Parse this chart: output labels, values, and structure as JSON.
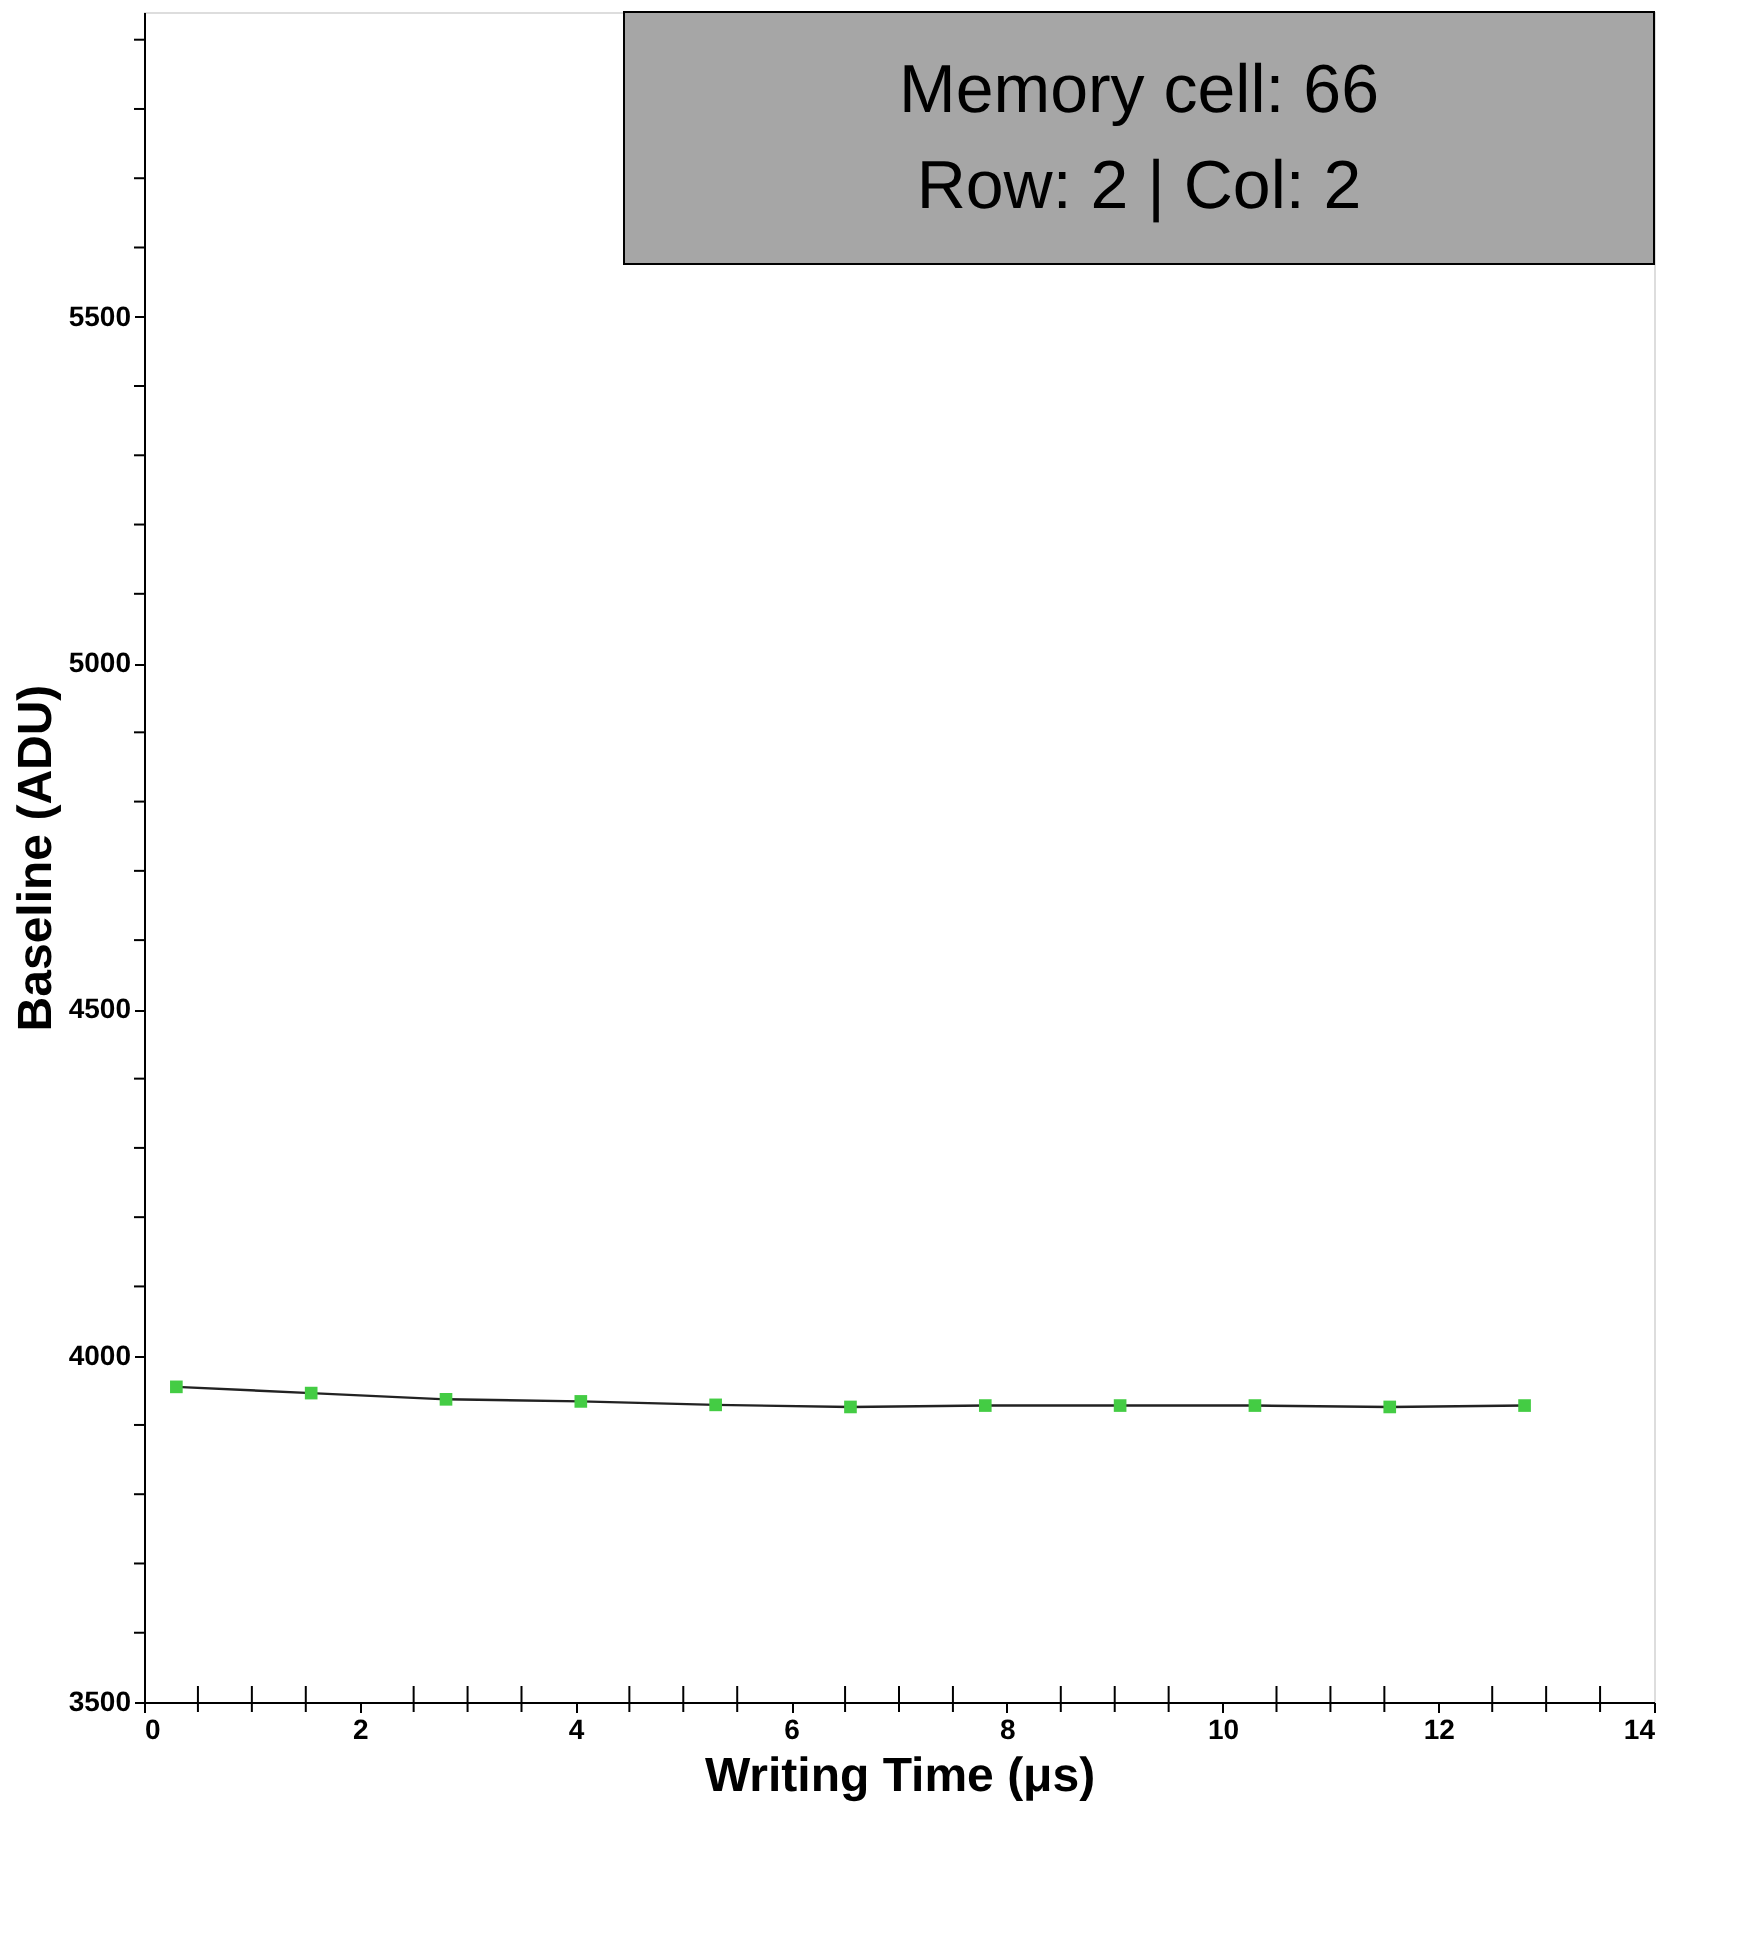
{
  "chart_data": {
    "type": "line",
    "xlabel": "Writing Time (μs)",
    "ylabel": "Baseline (ADU)",
    "x": [
      0.3,
      1.55,
      2.8,
      4.05,
      5.3,
      6.55,
      7.8,
      9.05,
      10.3,
      11.55,
      12.8
    ],
    "series": [
      {
        "color": "#44cc44",
        "values": [
          3955,
          3946,
          3937,
          3934,
          3929,
          3926,
          3928,
          3928,
          3928,
          3926,
          3928
        ]
      }
    ],
    "marker": "square",
    "xlim": [
      0,
      14
    ],
    "ylim": [
      3500,
      5940
    ],
    "xticks": [
      0,
      {
        "value": 0.5,
        "label": null
      },
      {
        "value": 1,
        "label": null
      },
      {
        "value": 1.5,
        "label": null
      },
      2,
      {
        "value": 2.5,
        "label": null
      },
      {
        "value": 3,
        "label": null
      },
      {
        "value": 3.5,
        "label": null
      },
      4,
      {
        "value": 4.5,
        "label": null
      },
      {
        "value": 5,
        "label": null
      },
      {
        "value": 5.5,
        "label": null
      },
      6,
      {
        "value": 6.5,
        "label": null
      },
      {
        "value": 7,
        "label": null
      },
      {
        "value": 7.5,
        "label": null
      },
      8,
      {
        "value": 8.5,
        "label": null
      },
      {
        "value": 9,
        "label": null
      },
      {
        "value": 9.5,
        "label": null
      },
      10,
      {
        "value": 10.5,
        "label": null
      },
      {
        "value": 11,
        "label": null
      },
      {
        "value": 11.5,
        "label": null
      },
      12,
      {
        "value": 12.5,
        "label": null
      },
      {
        "value": 13,
        "label": null
      },
      {
        "value": 13.5,
        "label": null
      },
      14
    ],
    "yticks": [
      3500,
      {
        "value": 3600,
        "label": null
      },
      {
        "value": 3700,
        "label": null
      },
      {
        "value": 3800,
        "label": null
      },
      {
        "value": 3900,
        "label": null
      },
      4000,
      {
        "value": 4100,
        "label": null
      },
      {
        "value": 4200,
        "label": null
      },
      {
        "value": 4300,
        "label": null
      },
      {
        "value": 4400,
        "label": null
      },
      4500,
      {
        "value": 4600,
        "label": null
      },
      {
        "value": 4700,
        "label": null
      },
      {
        "value": 4800,
        "label": null
      },
      {
        "value": 4900,
        "label": null
      },
      5000,
      {
        "value": 5100,
        "label": null
      },
      {
        "value": 5200,
        "label": null
      },
      {
        "value": 5300,
        "label": null
      },
      {
        "value": 5400,
        "label": null
      },
      5500,
      {
        "value": 5600,
        "label": null
      },
      {
        "value": 5700,
        "label": null
      },
      {
        "value": 5800,
        "label": null
      },
      {
        "value": 5900,
        "label": null
      }
    ],
    "grid": false,
    "annotations": [
      "Memory cell: 66",
      "Row: 2 | Col: 2"
    ]
  }
}
